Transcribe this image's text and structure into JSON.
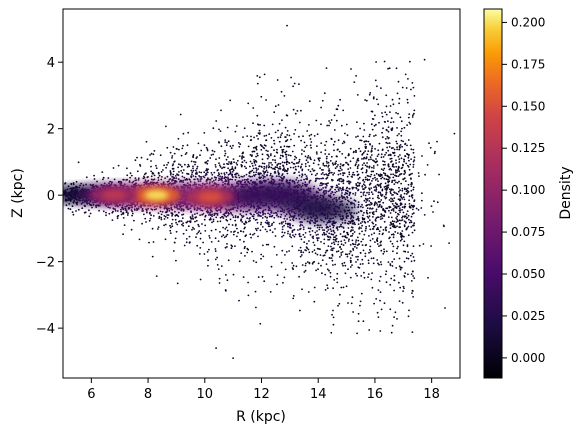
{
  "chart_data": {
    "type": "scatter",
    "title": "",
    "xlabel": "R (kpc)",
    "ylabel": "Z (kpc)",
    "xlim": [
      5.0,
      19.0
    ],
    "ylim": [
      -5.5,
      5.6
    ],
    "xticks": [
      6,
      8,
      10,
      12,
      14,
      16,
      18
    ],
    "yticks": [
      -4,
      -2,
      0,
      2,
      4
    ],
    "grid": false,
    "point_color_by": "Density",
    "colormap": "inferno",
    "colorbar": {
      "label": "Density",
      "range": [
        -0.012,
        0.208
      ],
      "ticks": [
        "0.000",
        "0.025",
        "0.050",
        "0.075",
        "0.100",
        "0.125",
        "0.150",
        "0.175",
        "0.200"
      ],
      "tick_values": [
        0.0,
        0.025,
        0.05,
        0.075,
        0.1,
        0.125,
        0.15,
        0.175,
        0.2
      ]
    },
    "density_peaks": [
      {
        "x": 8.3,
        "y": 0.0,
        "density": 0.2
      },
      {
        "x": 10.2,
        "y": -0.05,
        "density": 0.15
      },
      {
        "x": 6.8,
        "y": 0.0,
        "density": 0.13
      }
    ],
    "distribution": {
      "r_range": [
        5.0,
        19.0
      ],
      "disk_flare": "scale height grows with R; warp upward near R 12-13",
      "notable_points": [
        {
          "x": 12.9,
          "y": 5.1
        },
        {
          "x": 11.0,
          "y": -4.9
        },
        {
          "x": 10.4,
          "y": -4.6
        },
        {
          "x": 19.0,
          "y": 0.0
        }
      ]
    }
  }
}
